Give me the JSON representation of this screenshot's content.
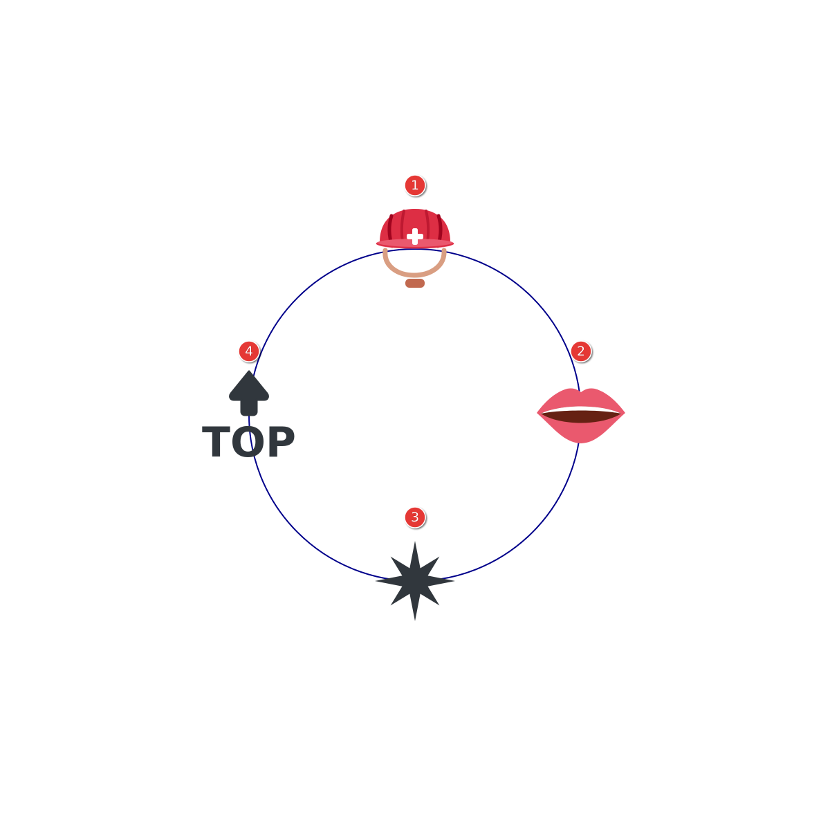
{
  "diagram": {
    "type": "cycle",
    "ring_color": "#00008b",
    "badge_color": "#e53935",
    "nodes": [
      {
        "number": "1",
        "icon": "rescue-worker-helmet-icon"
      },
      {
        "number": "2",
        "icon": "mouth-icon"
      },
      {
        "number": "3",
        "icon": "eight-pointed-star-icon"
      },
      {
        "number": "4",
        "icon": "top-arrow-icon",
        "text": "TOP"
      }
    ],
    "colors": {
      "helmet_red": "#dd2e44",
      "helmet_dark_red": "#a0041e",
      "helmet_strap": "#d99e82",
      "helmet_buckle": "#c1694f",
      "lips_pink": "#ea596e",
      "mouth_dark": "#662113",
      "teeth": "#ffffff",
      "icon_dark": "#31373d"
    }
  }
}
